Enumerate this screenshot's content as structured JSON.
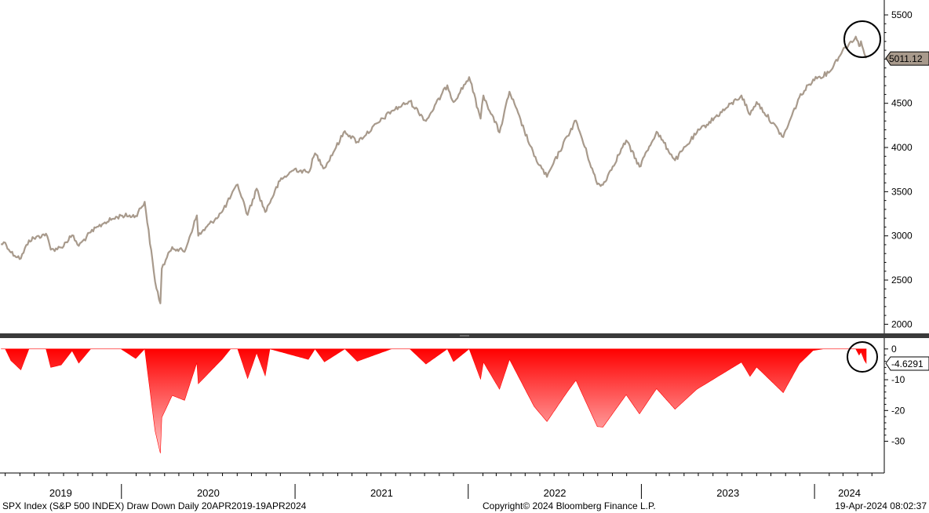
{
  "chart_data": [
    {
      "type": "line",
      "series": [
        {
          "points": [
            [
              "2019-04-22",
              2907
            ],
            [
              "2019-05-01",
              2923
            ],
            [
              "2019-05-13",
              2812
            ],
            [
              "2019-06-03",
              2744
            ],
            [
              "2019-06-20",
              2950
            ],
            [
              "2019-07-26",
              3025
            ],
            [
              "2019-08-05",
              2844
            ],
            [
              "2019-08-27",
              2869
            ],
            [
              "2019-09-19",
              3006
            ],
            [
              "2019-10-03",
              2887
            ],
            [
              "2019-10-28",
              3039
            ],
            [
              "2019-11-27",
              3153
            ],
            [
              "2019-12-31",
              3230
            ],
            [
              "2020-01-31",
              3225
            ],
            [
              "2020-02-19",
              3386
            ],
            [
              "2020-03-12",
              2480
            ],
            [
              "2020-03-23",
              2237
            ],
            [
              "2020-03-26",
              2630
            ],
            [
              "2020-04-17",
              2874
            ],
            [
              "2020-05-13",
              2820
            ],
            [
              "2020-06-08",
              3232
            ],
            [
              "2020-06-11",
              3002
            ],
            [
              "2020-07-31",
              3271
            ],
            [
              "2020-09-02",
              3580
            ],
            [
              "2020-09-23",
              3237
            ],
            [
              "2020-10-12",
              3534
            ],
            [
              "2020-10-30",
              3270
            ],
            [
              "2020-11-30",
              3621
            ],
            [
              "2020-12-31",
              3756
            ],
            [
              "2021-01-29",
              3714
            ],
            [
              "2021-02-12",
              3934
            ],
            [
              "2021-03-04",
              3768
            ],
            [
              "2021-04-16",
              4185
            ],
            [
              "2021-05-12",
              4063
            ],
            [
              "2021-07-23",
              4411
            ],
            [
              "2021-08-31",
              4522
            ],
            [
              "2021-10-04",
              4300
            ],
            [
              "2021-11-18",
              4704
            ],
            [
              "2021-12-01",
              4513
            ],
            [
              "2022-01-03",
              4796
            ],
            [
              "2022-01-27",
              4327
            ],
            [
              "2022-02-02",
              4589
            ],
            [
              "2022-03-08",
              4170
            ],
            [
              "2022-03-29",
              4631
            ],
            [
              "2022-05-20",
              3901
            ],
            [
              "2022-06-16",
              3667
            ],
            [
              "2022-07-29",
              4130
            ],
            [
              "2022-08-16",
              4305
            ],
            [
              "2022-09-30",
              3585
            ],
            [
              "2022-10-12",
              3577
            ],
            [
              "2022-11-30",
              4080
            ],
            [
              "2022-12-28",
              3783
            ],
            [
              "2023-02-02",
              4179
            ],
            [
              "2023-03-13",
              3855
            ],
            [
              "2023-04-28",
              4169
            ],
            [
              "2023-06-30",
              4450
            ],
            [
              "2023-07-31",
              4589
            ],
            [
              "2023-08-18",
              4370
            ],
            [
              "2023-09-01",
              4515
            ],
            [
              "2023-10-27",
              4117
            ],
            [
              "2023-11-30",
              4568
            ],
            [
              "2023-12-29",
              4770
            ],
            [
              "2024-01-31",
              4846
            ],
            [
              "2024-02-29",
              5096
            ],
            [
              "2024-03-28",
              5254
            ],
            [
              "2024-04-04",
              5147
            ],
            [
              "2024-04-08",
              5202
            ],
            [
              "2024-04-15",
              5061
            ],
            [
              "2024-04-19",
              5011.12
            ]
          ]
        }
      ],
      "ylim": [
        1950,
        5580
      ],
      "yticks": [
        "2000",
        "2500",
        "3000",
        "3500",
        "4000",
        "4500",
        "5000",
        "5500"
      ],
      "last_value_label": "5011.12",
      "line_color": "#a89a8c",
      "badge_color": "#a89a8c",
      "grid": false
    },
    {
      "type": "area",
      "series": [
        {
          "points": [
            [
              "2019-04-22",
              0
            ],
            [
              "2019-05-01",
              0
            ],
            [
              "2019-05-13",
              -3.8
            ],
            [
              "2019-06-03",
              -6.8
            ],
            [
              "2019-06-20",
              0
            ],
            [
              "2019-07-26",
              0
            ],
            [
              "2019-08-05",
              -6.0
            ],
            [
              "2019-08-27",
              -5.2
            ],
            [
              "2019-09-19",
              -0.6
            ],
            [
              "2019-10-03",
              -4.6
            ],
            [
              "2019-10-28",
              0
            ],
            [
              "2019-12-31",
              0
            ],
            [
              "2020-01-31",
              -3.1
            ],
            [
              "2020-02-19",
              0
            ],
            [
              "2020-03-12",
              -26.7
            ],
            [
              "2020-03-23",
              -33.9
            ],
            [
              "2020-03-26",
              -22.3
            ],
            [
              "2020-04-17",
              -15.1
            ],
            [
              "2020-05-13",
              -16.7
            ],
            [
              "2020-06-08",
              -4.5
            ],
            [
              "2020-06-11",
              -11.3
            ],
            [
              "2020-07-31",
              -3.4
            ],
            [
              "2020-08-18",
              0
            ],
            [
              "2020-09-02",
              0
            ],
            [
              "2020-09-23",
              -9.6
            ],
            [
              "2020-10-12",
              -1.3
            ],
            [
              "2020-10-30",
              -8.7
            ],
            [
              "2020-11-09",
              0
            ],
            [
              "2021-01-29",
              -3.4
            ],
            [
              "2021-02-12",
              0
            ],
            [
              "2021-03-04",
              -4.2
            ],
            [
              "2021-04-16",
              0
            ],
            [
              "2021-05-12",
              -4.0
            ],
            [
              "2021-07-23",
              0
            ],
            [
              "2021-08-31",
              0
            ],
            [
              "2021-10-04",
              -4.9
            ],
            [
              "2021-11-18",
              0
            ],
            [
              "2021-12-01",
              -4.1
            ],
            [
              "2022-01-03",
              0
            ],
            [
              "2022-01-27",
              -9.8
            ],
            [
              "2022-02-02",
              -4.3
            ],
            [
              "2022-03-08",
              -13.1
            ],
            [
              "2022-03-29",
              -3.4
            ],
            [
              "2022-05-20",
              -18.7
            ],
            [
              "2022-06-16",
              -23.6
            ],
            [
              "2022-07-29",
              -13.9
            ],
            [
              "2022-08-16",
              -10.2
            ],
            [
              "2022-09-30",
              -25.2
            ],
            [
              "2022-10-12",
              -25.4
            ],
            [
              "2022-11-30",
              -14.9
            ],
            [
              "2022-12-28",
              -21.1
            ],
            [
              "2023-02-02",
              -12.9
            ],
            [
              "2023-03-13",
              -19.6
            ],
            [
              "2023-04-28",
              -13.1
            ],
            [
              "2023-06-30",
              -7.2
            ],
            [
              "2023-07-31",
              -4.3
            ],
            [
              "2023-08-18",
              -8.9
            ],
            [
              "2023-09-01",
              -5.9
            ],
            [
              "2023-10-27",
              -14.2
            ],
            [
              "2023-11-30",
              -4.8
            ],
            [
              "2023-12-29",
              -0.5
            ],
            [
              "2024-01-19",
              0
            ],
            [
              "2024-03-28",
              0
            ],
            [
              "2024-04-04",
              -2.0
            ],
            [
              "2024-04-08",
              -1.0
            ],
            [
              "2024-04-15",
              -3.7
            ],
            [
              "2024-04-19",
              -4.6291
            ]
          ]
        }
      ],
      "ylim": [
        -37,
        2
      ],
      "yticks": [
        "0",
        "-10",
        "-20",
        "-30"
      ],
      "last_value_label": "-4.6291",
      "fill_top_color": "#ff0000",
      "fill_bottom_color": "#ffc8c8",
      "badge_color": "#ffffff",
      "grid": false
    }
  ],
  "x_axis": {
    "start": "2019-04-20",
    "end": "2024-04-19",
    "year_labels": [
      "2019",
      "2020",
      "2021",
      "2022",
      "2023",
      "2024"
    ]
  },
  "footer": {
    "left": "SPX Index (S&P 500 INDEX) Draw Down  Daily 20APR2019-19APR2024",
    "center": "Copyright© 2024 Bloomberg Finance L.P.",
    "right": "19-Apr-2024 08:02:37"
  }
}
